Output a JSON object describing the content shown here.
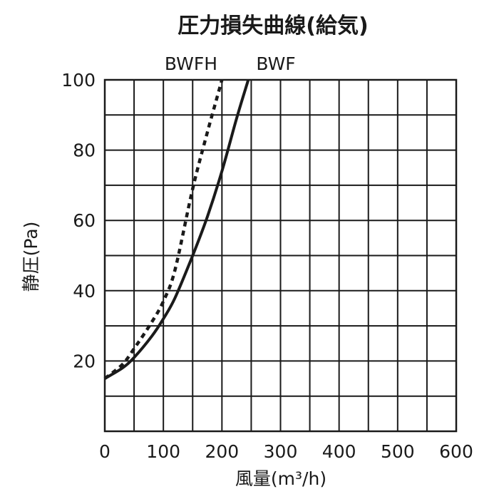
{
  "chart_data": {
    "type": "line",
    "title": "圧力損失曲線(給気)",
    "xlabel": "風量(m³/h)",
    "ylabel": "静圧(Pa)",
    "xlim": [
      0,
      600
    ],
    "ylim": [
      0,
      100
    ],
    "xticks": [
      0,
      100,
      200,
      300,
      400,
      500,
      600
    ],
    "yticks": [
      20,
      40,
      60,
      80,
      100
    ],
    "x_tick_labels": [
      "0",
      "100",
      "200",
      "300",
      "400",
      "500",
      "600"
    ],
    "y_tick_labels": [
      "20",
      "40",
      "60",
      "80",
      "100"
    ],
    "grid": true,
    "series": [
      {
        "name": "BWFH",
        "style": "dashed",
        "color": "#1a1a1a",
        "points": [
          [
            0,
            15
          ],
          [
            30,
            19
          ],
          [
            50,
            23.5
          ],
          [
            80,
            31
          ],
          [
            100,
            37
          ],
          [
            120,
            46
          ],
          [
            150,
            69
          ],
          [
            175,
            85
          ],
          [
            190,
            94
          ],
          [
            200,
            100
          ]
        ]
      },
      {
        "name": "BWF",
        "style": "solid",
        "color": "#1a1a1a",
        "points": [
          [
            0,
            15
          ],
          [
            30,
            18
          ],
          [
            50,
            21
          ],
          [
            80,
            27
          ],
          [
            100,
            32
          ],
          [
            120,
            38
          ],
          [
            150,
            50
          ],
          [
            175,
            61
          ],
          [
            200,
            74
          ],
          [
            225,
            89
          ],
          [
            245,
            100
          ]
        ]
      }
    ]
  }
}
